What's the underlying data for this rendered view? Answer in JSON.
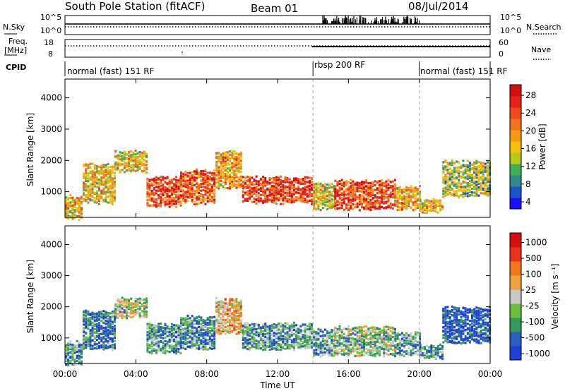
{
  "header": {
    "station": "South Pole Station (fitACF)",
    "beam": "Beam 01",
    "date": "08/Jul/2014"
  },
  "top_panels": {
    "nsky_label": "N.Sky",
    "nsearch_label": "N.Search",
    "nsky_ticks": [
      "10^5",
      "10^0"
    ],
    "nsearch_ticks": [
      "10^5",
      "10^0"
    ],
    "freq_label": "Freq.",
    "freq_unit": "[MHz]",
    "freq_ticks": [
      "18",
      "8"
    ],
    "nave_label": "Nave",
    "nave_ticks": [
      "60",
      "0"
    ],
    "cpid_label": "CPID",
    "cpid_segments": [
      {
        "label": "normal (fast) 151 RF",
        "start_h": 0,
        "end_h": 14
      },
      {
        "label": "rbsp 200 RF",
        "start_h": 14,
        "end_h": 20
      },
      {
        "label": "normal (fast) 151 RF",
        "start_h": 20,
        "end_h": 24
      }
    ]
  },
  "chart_data": [
    {
      "type": "heatmap",
      "name": "power",
      "xlabel": "",
      "ylabel": "Slant Range [km]",
      "x_range_h": [
        0,
        24
      ],
      "ylim_km": [
        180,
        4600
      ],
      "y_ticks": [
        "4000",
        "3000",
        "2000",
        "1000"
      ],
      "colorbar_label": "Power [dB]",
      "colorbar_ticks": [
        "28",
        "24",
        "20",
        "16",
        "12",
        "8",
        "4"
      ],
      "colorbar_colors": [
        "#1a10ff",
        "#1f52c8",
        "#2f8a8a",
        "#3fb050",
        "#b8c814",
        "#f6c10a",
        "#f59a12",
        "#f0731c",
        "#ee4a1e",
        "#e8201a",
        "#d40f10"
      ],
      "echo_bands": [
        {
          "t0": 0.0,
          "t1": 1.0,
          "r0": 200,
          "r1": 900,
          "level": 0.55
        },
        {
          "t0": 1.0,
          "t1": 2.8,
          "r0": 700,
          "r1": 1900,
          "level": 0.5
        },
        {
          "t0": 2.8,
          "t1": 4.6,
          "r0": 1700,
          "r1": 2300,
          "level": 0.5
        },
        {
          "t0": 4.6,
          "t1": 6.5,
          "r0": 600,
          "r1": 1500,
          "level": 0.8
        },
        {
          "t0": 6.5,
          "t1": 8.5,
          "r0": 700,
          "r1": 1700,
          "level": 0.75
        },
        {
          "t0": 8.5,
          "t1": 10.0,
          "r0": 1200,
          "r1": 2300,
          "level": 0.6
        },
        {
          "t0": 10.0,
          "t1": 14.0,
          "r0": 700,
          "r1": 1500,
          "level": 0.8
        },
        {
          "t0": 14.0,
          "t1": 15.2,
          "r0": 500,
          "r1": 1300,
          "level": 0.5
        },
        {
          "t0": 15.2,
          "t1": 18.6,
          "r0": 500,
          "r1": 1400,
          "level": 0.8
        },
        {
          "t0": 18.6,
          "t1": 20.0,
          "r0": 500,
          "r1": 1200,
          "level": 0.6
        },
        {
          "t0": 20.0,
          "t1": 21.3,
          "r0": 400,
          "r1": 800,
          "level": 0.55
        },
        {
          "t0": 21.3,
          "t1": 24.0,
          "r0": 900,
          "r1": 2000,
          "level": 0.4
        }
      ]
    },
    {
      "type": "heatmap",
      "name": "velocity",
      "xlabel": "Time UT",
      "ylabel": "Slant Range [km]",
      "x_range_h": [
        0,
        24
      ],
      "ylim_km": [
        180,
        4600
      ],
      "y_ticks": [
        "4000",
        "3000",
        "2000",
        "1000"
      ],
      "x_ticks": [
        "00:00",
        "04:00",
        "08:00",
        "12:00",
        "16:00",
        "20:00",
        "00:00"
      ],
      "colorbar_label": "Velocity [m s⁻¹]",
      "colorbar_ticks": [
        "1000",
        "500",
        "100",
        "25",
        "-25",
        "-100",
        "-500",
        "-1000"
      ],
      "colorbar_colors": [
        "#1f3fd8",
        "#2a5ec0",
        "#2f9a5a",
        "#6bbf3a",
        "#c8c8c8",
        "#f0a040",
        "#f07a1a",
        "#e8321a",
        "#d40f10"
      ],
      "echo_bands": [
        {
          "t0": 0.0,
          "t1": 1.0,
          "r0": 200,
          "r1": 900,
          "level": 0.3
        },
        {
          "t0": 1.0,
          "t1": 2.8,
          "r0": 700,
          "r1": 1900,
          "level": 0.2
        },
        {
          "t0": 2.8,
          "t1": 4.6,
          "r0": 1700,
          "r1": 2300,
          "level": 0.45
        },
        {
          "t0": 4.6,
          "t1": 6.5,
          "r0": 600,
          "r1": 1500,
          "level": 0.3
        },
        {
          "t0": 6.5,
          "t1": 8.5,
          "r0": 700,
          "r1": 1700,
          "level": 0.25
        },
        {
          "t0": 8.5,
          "t1": 10.0,
          "r0": 1200,
          "r1": 2300,
          "level": 0.6
        },
        {
          "t0": 10.0,
          "t1": 14.0,
          "r0": 700,
          "r1": 1500,
          "level": 0.3
        },
        {
          "t0": 14.0,
          "t1": 15.2,
          "r0": 500,
          "r1": 1300,
          "level": 0.3
        },
        {
          "t0": 15.2,
          "t1": 18.6,
          "r0": 500,
          "r1": 1400,
          "level": 0.4
        },
        {
          "t0": 18.6,
          "t1": 20.0,
          "r0": 500,
          "r1": 1200,
          "level": 0.3
        },
        {
          "t0": 20.0,
          "t1": 21.3,
          "r0": 400,
          "r1": 800,
          "level": 0.3
        },
        {
          "t0": 21.3,
          "t1": 24.0,
          "r0": 900,
          "r1": 2000,
          "level": 0.1
        }
      ]
    }
  ]
}
